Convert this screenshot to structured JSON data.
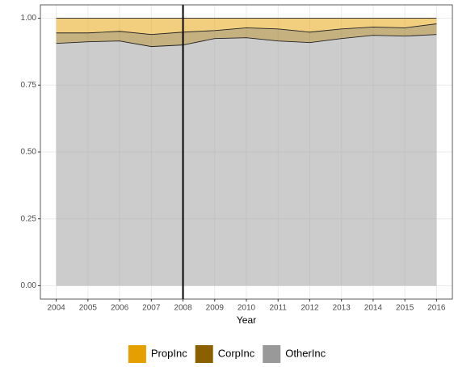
{
  "chart_data": {
    "type": "stacked_area",
    "x_label": "Year",
    "x": [
      2004,
      2005,
      2006,
      2007,
      2008,
      2009,
      2010,
      2011,
      2012,
      2013,
      2014,
      2015,
      2016
    ],
    "series": [
      {
        "name": "PropInc",
        "color": "#e69f00",
        "values": [
          0.055,
          0.055,
          0.049,
          0.061,
          0.052,
          0.046,
          0.036,
          0.04,
          0.052,
          0.04,
          0.033,
          0.036,
          0.021
        ]
      },
      {
        "name": "CorpInc",
        "color": "#8b6100",
        "values": [
          0.039,
          0.033,
          0.036,
          0.045,
          0.048,
          0.03,
          0.037,
          0.045,
          0.039,
          0.036,
          0.031,
          0.031,
          0.04
        ]
      },
      {
        "name": "OtherInc",
        "color": "#999999",
        "values": [
          0.906,
          0.912,
          0.915,
          0.894,
          0.9,
          0.924,
          0.927,
          0.915,
          0.909,
          0.924,
          0.936,
          0.933,
          0.939
        ]
      }
    ],
    "xlim": [
      2003.5,
      2016.5
    ],
    "xticks": [
      2004,
      2005,
      2006,
      2007,
      2008,
      2009,
      2010,
      2011,
      2012,
      2013,
      2014,
      2015,
      2016
    ],
    "ylim": [
      -0.05,
      1.05
    ],
    "yticks": [
      {
        "value": 0,
        "label": "0.00"
      },
      {
        "value": 0.25,
        "label": "0.25"
      },
      {
        "value": 0.5,
        "label": "0.50"
      },
      {
        "value": 0.75,
        "label": "0.75"
      },
      {
        "value": 1,
        "label": "1.00"
      }
    ],
    "vline_x": 2008,
    "grid": true,
    "legend_position": "bottom"
  }
}
